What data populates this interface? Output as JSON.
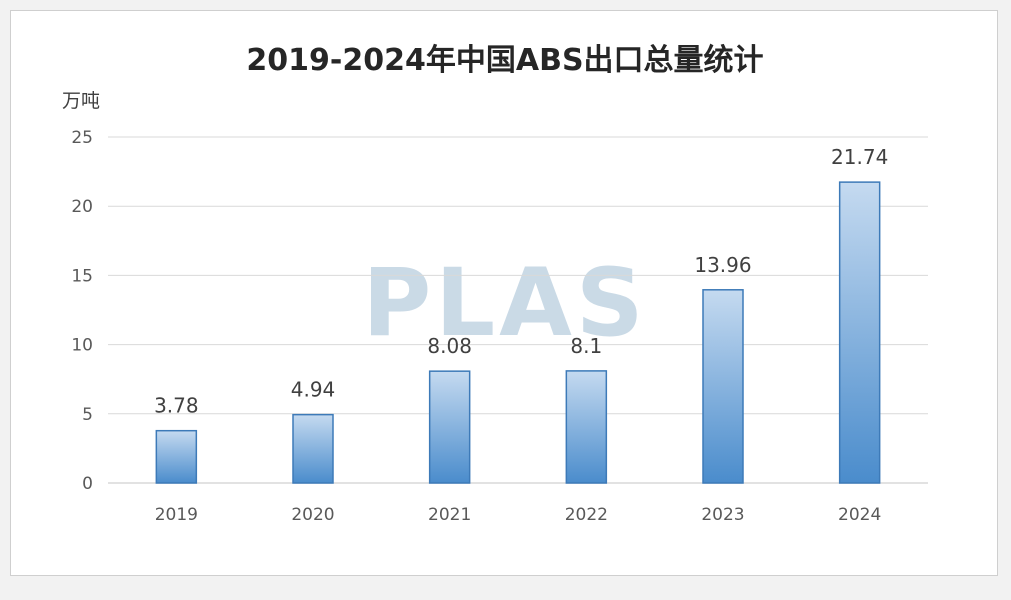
{
  "chart_data": {
    "type": "bar",
    "title": "2019-2024年中国ABS出口总量统计",
    "ylabel": "万吨",
    "xlabel": "",
    "categories": [
      "2019",
      "2020",
      "2021",
      "2022",
      "2023",
      "2024"
    ],
    "values": [
      3.78,
      4.94,
      8.08,
      8.1,
      13.96,
      21.74
    ],
    "value_labels": [
      "3.78",
      "4.94",
      "8.08",
      "8.1",
      "13.96",
      "21.74"
    ],
    "ylim": [
      0,
      25
    ],
    "yticks": [
      "0",
      "5",
      "10",
      "15",
      "20",
      "25"
    ],
    "grid": true,
    "legend": "none",
    "colors": {
      "bar_top": "#c5daf0",
      "bar_bottom": "#4a8ccc",
      "bar_edge": "#3d7ab8",
      "grid": "#d9d9d9"
    }
  },
  "watermark": "PLAS"
}
